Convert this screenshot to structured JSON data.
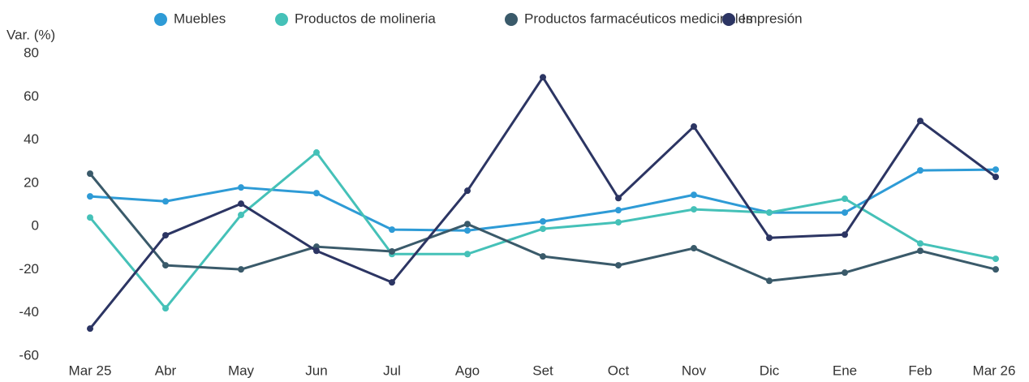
{
  "chart_data": {
    "type": "line",
    "y_label": "Var. (%)",
    "categories": [
      "Mar 25",
      "Abr",
      "May",
      "Jun",
      "Jul",
      "Ago",
      "Set",
      "Oct",
      "Nov",
      "Dic",
      "Ene",
      "Feb",
      "Mar 26"
    ],
    "ylim": [
      -60,
      80
    ],
    "yticks": [
      -60,
      -40,
      -20,
      0,
      20,
      40,
      60,
      80
    ],
    "grid": false,
    "series": [
      {
        "name": "Muebles",
        "color": "#2e9bd6",
        "values": [
          13.9,
          11.6,
          18,
          15.4,
          -1.5,
          -1.9,
          2.3,
          7.5,
          14.6,
          6.4,
          6.4,
          25.9,
          26.3
        ]
      },
      {
        "name": "Productos de molineria",
        "color": "#45c1b8",
        "values": [
          4.1,
          -37.9,
          5.3,
          34.2,
          -12.8,
          -12.8,
          -1.1,
          1.9,
          7.9,
          6.4,
          12.8,
          -7.9,
          -15
        ]
      },
      {
        "name": "Productos farmacéuticos medicinales",
        "color": "#3a5a6a",
        "values": [
          24.4,
          -18,
          -19.9,
          -9.4,
          -11.6,
          1.1,
          -13.9,
          -18,
          -10.1,
          -25.2,
          -21.4,
          -11.3,
          -19.9
        ]
      },
      {
        "name": "Impresión",
        "color": "#2c3563",
        "values": [
          -47.3,
          -4.1,
          10.5,
          -11.3,
          -25.9,
          16.5,
          69,
          13.1,
          46.2,
          -5.3,
          -3.8,
          48.8,
          22.9
        ]
      }
    ]
  }
}
